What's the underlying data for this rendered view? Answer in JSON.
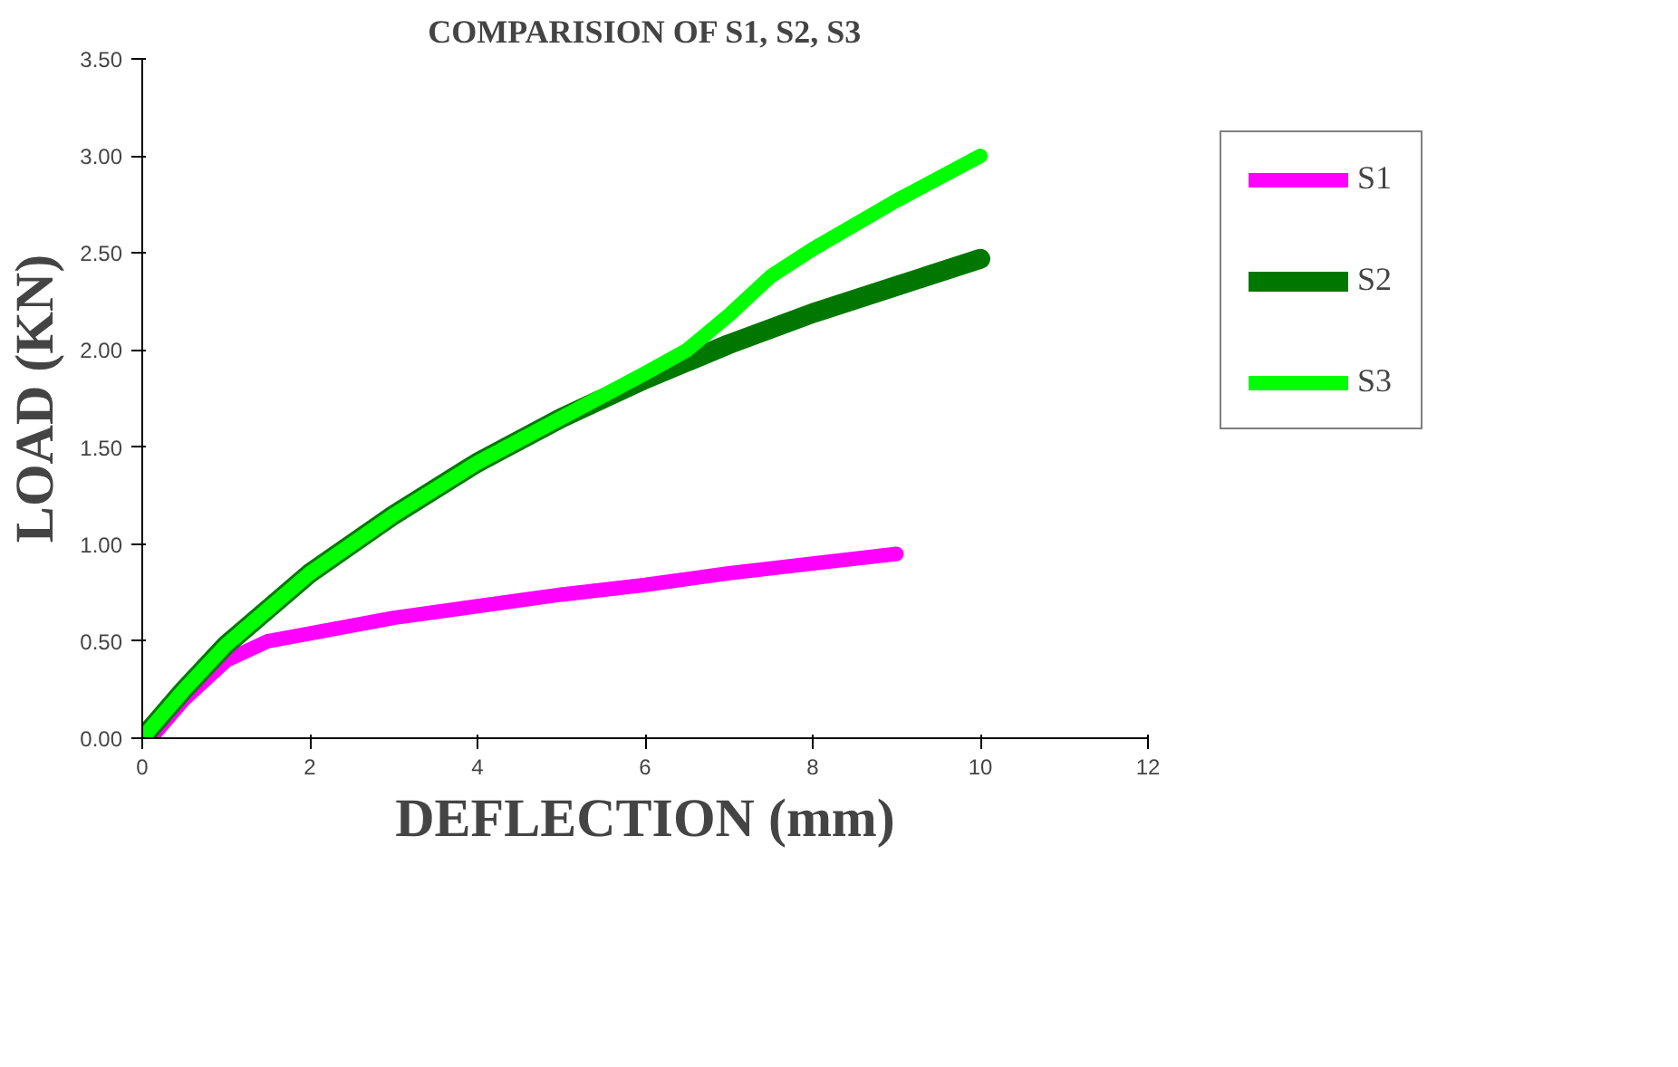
{
  "chart_data": {
    "type": "line",
    "title": "COMPARISION OF S1, S2, S3",
    "xlabel": "DEFLECTION (mm)",
    "ylabel": "LOAD (KN)",
    "xlim": [
      0,
      12
    ],
    "xticks": [
      0,
      2,
      4,
      6,
      8,
      10,
      12
    ],
    "ylim": [
      0,
      3.5
    ],
    "yticks": [
      {
        "value": 0,
        "label": "0.00"
      },
      {
        "value": 0.5,
        "label": "0.50"
      },
      {
        "value": 1,
        "label": "1.00"
      },
      {
        "value": 1.5,
        "label": "1.50"
      },
      {
        "value": 2,
        "label": "2.00"
      },
      {
        "value": 2.5,
        "label": "2.50"
      },
      {
        "value": 3,
        "label": "3.00"
      },
      {
        "value": 3.5,
        "label": "3.50"
      }
    ],
    "grid": false,
    "legend": "right",
    "marker": "none",
    "line_style": "solid",
    "series": [
      {
        "name": "S1",
        "color": "#ff00ff",
        "x": [
          0.1,
          0.5,
          1,
          1.5,
          2,
          3,
          4,
          5,
          6,
          7,
          8,
          9
        ],
        "values": [
          0,
          0.2,
          0.4,
          0.5,
          0.54,
          0.62,
          0.68,
          0.74,
          0.79,
          0.85,
          0.9,
          0.95
        ]
      },
      {
        "name": "S2",
        "color": "#007800",
        "x": [
          0,
          0.5,
          1,
          2,
          3,
          4,
          5,
          6,
          7,
          8,
          9,
          10
        ],
        "values": [
          0,
          0.25,
          0.48,
          0.85,
          1.15,
          1.42,
          1.65,
          1.85,
          2.03,
          2.19,
          2.33,
          2.47
        ]
      },
      {
        "name": "S3",
        "color": "#00ff00",
        "x": [
          0,
          0.5,
          1,
          2,
          3,
          4,
          5,
          6,
          6.5,
          7,
          7.5,
          8,
          9,
          10
        ],
        "values": [
          0,
          0.25,
          0.48,
          0.85,
          1.15,
          1.42,
          1.65,
          1.88,
          2.0,
          2.18,
          2.38,
          2.52,
          2.77,
          3.0
        ]
      }
    ]
  }
}
